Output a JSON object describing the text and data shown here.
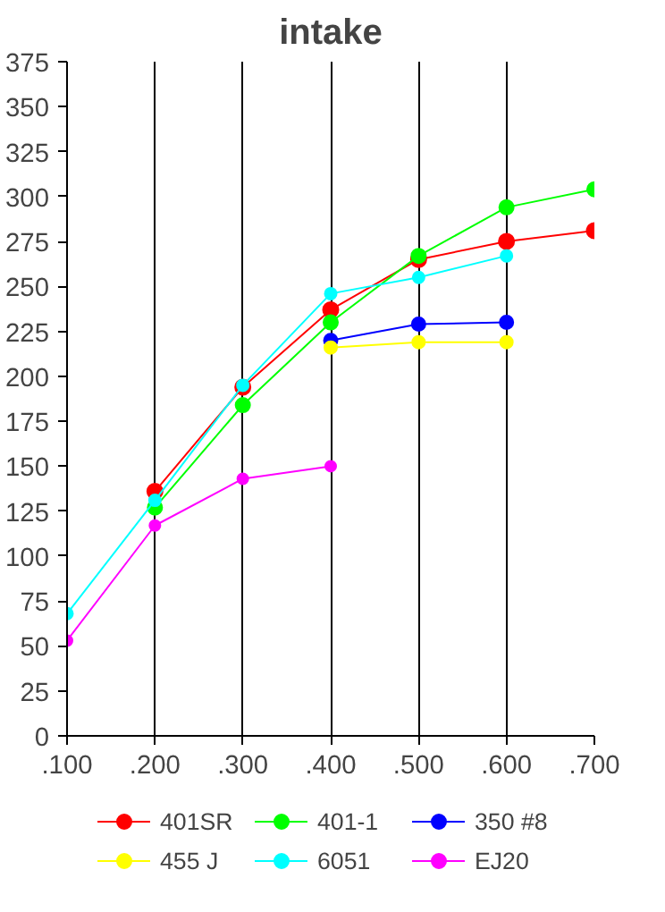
{
  "chart_data": {
    "type": "line",
    "title": "intake",
    "xlim": [
      0.1,
      0.7
    ],
    "ylim": [
      0,
      375
    ],
    "xticks": [
      {
        "value": 0.1,
        "label": ".100"
      },
      {
        "value": 0.2,
        "label": ".200"
      },
      {
        "value": 0.3,
        "label": ".300"
      },
      {
        "value": 0.4,
        "label": ".400"
      },
      {
        "value": 0.5,
        "label": ".500"
      },
      {
        "value": 0.6,
        "label": ".600"
      },
      {
        "value": 0.7,
        "label": ".700"
      }
    ],
    "yticks": [
      0,
      25,
      50,
      75,
      100,
      125,
      150,
      175,
      200,
      225,
      250,
      275,
      300,
      325,
      350,
      375
    ],
    "grid": "x",
    "legend": "bottom",
    "marker": "circle",
    "line_style": "solid",
    "series": [
      {
        "name": "401SR",
        "color": "#ff0000",
        "x": [
          0.2,
          0.3,
          0.4,
          0.5,
          0.6,
          0.7
        ],
        "values": [
          136,
          194,
          237,
          265,
          275,
          281
        ]
      },
      {
        "name": "401-1",
        "color": "#00ff00",
        "x": [
          0.2,
          0.3,
          0.4,
          0.5,
          0.6,
          0.7
        ],
        "values": [
          127,
          184,
          230,
          267,
          294,
          304
        ]
      },
      {
        "name": "350 #8",
        "color": "#0000ff",
        "x": [
          0.4,
          0.5,
          0.6
        ],
        "values": [
          220,
          229,
          230
        ]
      },
      {
        "name": "455 J",
        "color": "#ffff00",
        "x": [
          0.4,
          0.5,
          0.6
        ],
        "values": [
          216,
          219,
          219
        ]
      },
      {
        "name": "6051",
        "color": "#00ffff",
        "x": [
          0.1,
          0.2,
          0.3,
          0.4,
          0.5,
          0.6
        ],
        "values": [
          68,
          131,
          195,
          246,
          255,
          267
        ]
      },
      {
        "name": "EJ20",
        "color": "#ff00ff",
        "x": [
          0.1,
          0.2,
          0.3,
          0.4
        ],
        "values": [
          53,
          117,
          143,
          150
        ]
      }
    ]
  }
}
